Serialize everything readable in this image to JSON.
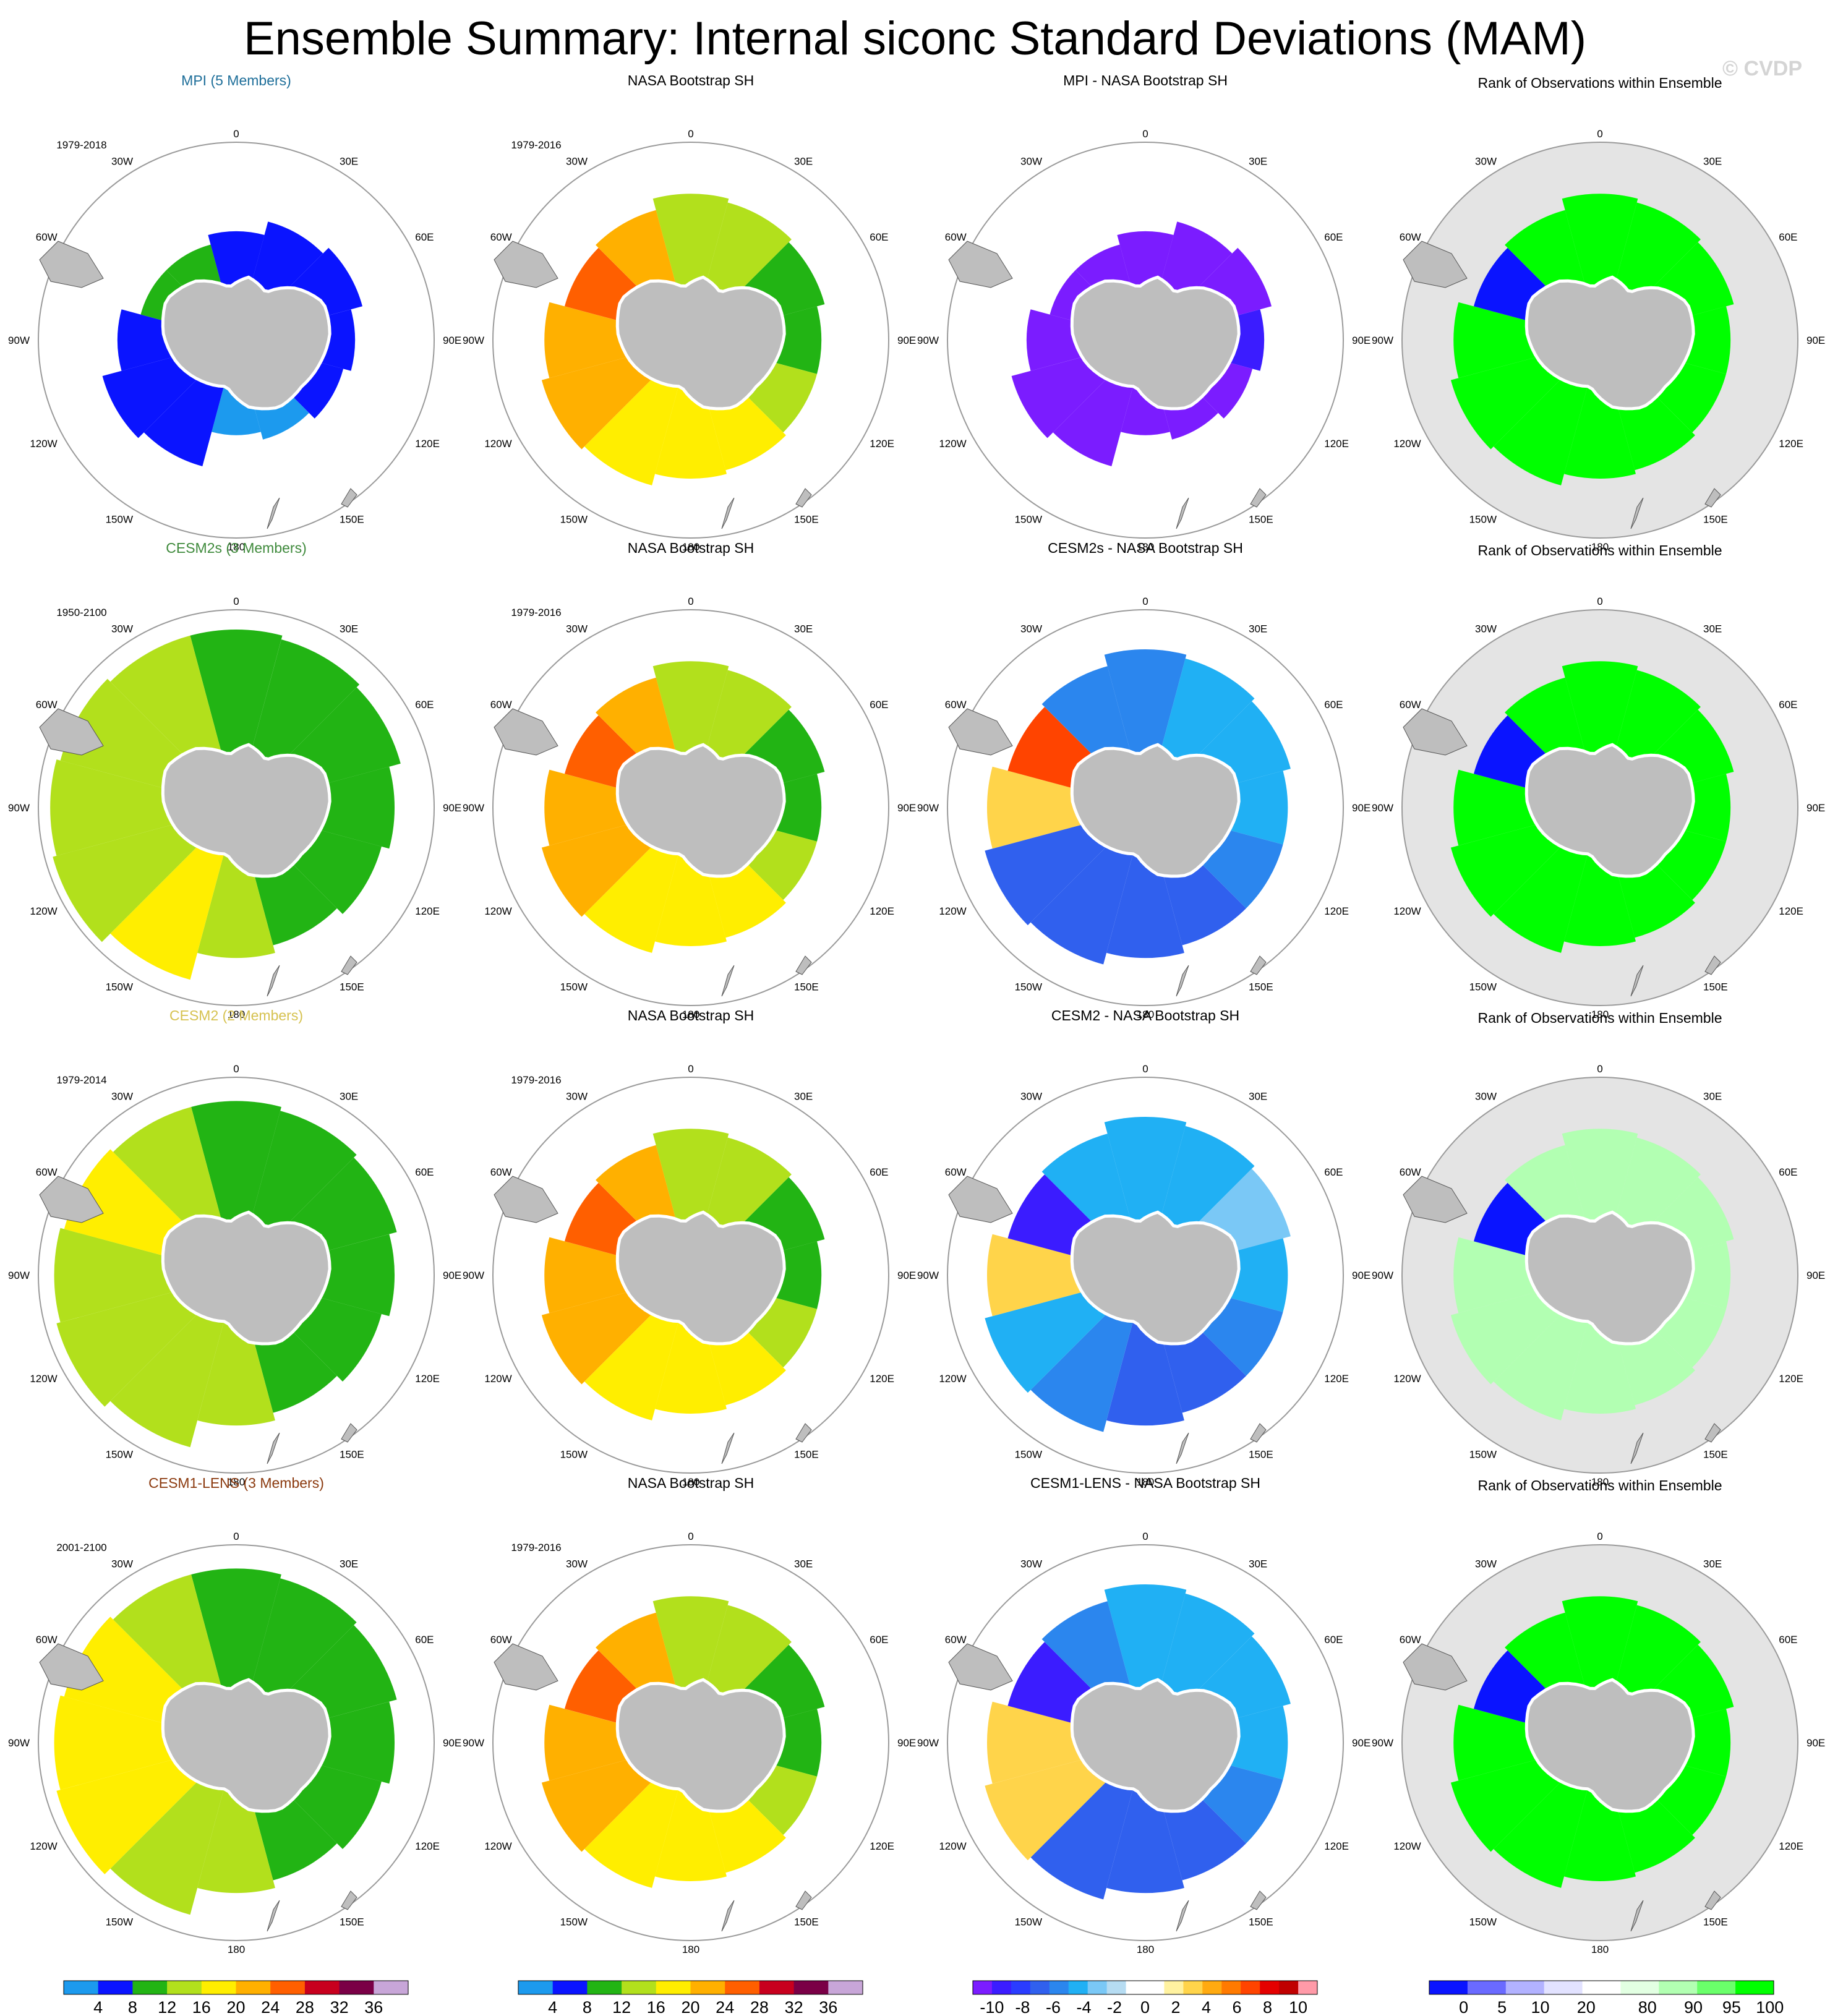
{
  "title": "Ensemble Summary: Internal siconc Standard Deviations (MAM)",
  "watermark": "© CVDP",
  "lon_labels": [
    "0",
    "30E",
    "60E",
    "90E",
    "120E",
    "150E",
    "180",
    "150W",
    "120W",
    "90W",
    "60W",
    "30W"
  ],
  "colors": {
    "land": "#bebebe",
    "rank_background": "#e4e4e4",
    "coast_mask": "#ffffff",
    "map_border": "#9a9a9a"
  },
  "chart_data": {
    "type": "heatmap",
    "projection": "south polar stereographic",
    "rows": [
      {
        "model": "MPI (5 Members)",
        "model_color": "#1f6f9a",
        "model_years": "1979-2018",
        "obs_title": "NASA Bootstrap SH",
        "obs_years": "1979-2016",
        "diff_title": "MPI - NASA Bootstrap SH",
        "rank_title": "Rank of Observations within Ensemble",
        "model_levels": [
          1,
          1,
          1,
          1,
          1,
          0,
          0,
          1,
          1,
          1,
          2,
          2
        ],
        "model_ice_extent": [
          0.55,
          0.62,
          0.66,
          0.6,
          0.56,
          0.52,
          0.48,
          0.66,
          0.7,
          0.6,
          0.5,
          0.5
        ],
        "diff_levels": [
          0,
          0,
          0,
          1,
          0,
          0,
          0,
          0,
          0,
          0,
          0,
          0
        ],
        "rank_levels": [
          11,
          11,
          11,
          11,
          11,
          11,
          11,
          11,
          11,
          11,
          0,
          11
        ]
      },
      {
        "model": "CESM2s (3 Members)",
        "model_color": "#3f8a3c",
        "model_years": "1950-2100",
        "obs_title": "NASA Bootstrap SH",
        "obs_years": "1979-2016",
        "diff_title": "CESM2s - NASA Bootstrap SH",
        "rank_title": "Rank of Observations within Ensemble",
        "model_levels": [
          2,
          2,
          2,
          2,
          2,
          2,
          3,
          4,
          3,
          3,
          3,
          3
        ],
        "model_ice_extent": [
          0.9,
          0.88,
          0.86,
          0.8,
          0.76,
          0.72,
          0.76,
          0.9,
          0.96,
          0.94,
          0.92,
          0.9
        ],
        "diff_levels": [
          4,
          5,
          5,
          5,
          4,
          3,
          3,
          3,
          3,
          11,
          14,
          4
        ],
        "rank_levels": [
          11,
          11,
          11,
          11,
          11,
          11,
          11,
          11,
          11,
          11,
          0,
          11
        ]
      },
      {
        "model": "CESM2 (2 Members)",
        "model_color": "#d6c250",
        "model_years": "1979-2014",
        "obs_title": "NASA Bootstrap SH",
        "obs_years": "1979-2016",
        "diff_title": "CESM2 - NASA Bootstrap SH",
        "rank_title": "Rank of Observations within Ensemble",
        "model_levels": [
          2,
          2,
          2,
          2,
          2,
          2,
          3,
          3,
          3,
          3,
          4,
          3
        ],
        "model_ice_extent": [
          0.88,
          0.86,
          0.84,
          0.8,
          0.76,
          0.72,
          0.76,
          0.9,
          0.94,
          0.92,
          0.9,
          0.88
        ],
        "diff_levels": [
          5,
          5,
          6,
          5,
          4,
          3,
          3,
          4,
          5,
          11,
          1,
          5
        ],
        "rank_levels": [
          6,
          6,
          6,
          6,
          6,
          6,
          6,
          6,
          6,
          6,
          0,
          6
        ]
      },
      {
        "model": "CESM1-LENS (3 Members)",
        "model_color": "#8b3a0f",
        "model_years": "2001-2100",
        "obs_title": "NASA Bootstrap SH",
        "obs_years": "1979-2016",
        "diff_title": "CESM1-LENS - NASA Bootstrap SH",
        "rank_title": "Rank of Observations within Ensemble",
        "model_levels": [
          2,
          2,
          2,
          2,
          2,
          2,
          3,
          3,
          4,
          4,
          4,
          3
        ],
        "model_ice_extent": [
          0.88,
          0.86,
          0.84,
          0.8,
          0.76,
          0.72,
          0.76,
          0.9,
          0.94,
          0.92,
          0.9,
          0.88
        ],
        "diff_levels": [
          5,
          5,
          5,
          5,
          4,
          3,
          3,
          3,
          11,
          11,
          1,
          4
        ],
        "rank_levels": [
          11,
          11,
          11,
          11,
          11,
          11,
          11,
          11,
          11,
          11,
          0,
          11
        ]
      }
    ],
    "obs_levels": [
      3,
      3,
      2,
      2,
      3,
      4,
      4,
      4,
      5,
      5,
      6,
      5
    ],
    "obs_ice_extent": [
      0.74,
      0.72,
      0.7,
      0.66,
      0.66,
      0.68,
      0.7,
      0.76,
      0.78,
      0.74,
      0.66,
      0.68
    ],
    "colorbars": [
      {
        "unit": "%",
        "labels": [
          "4",
          "8",
          "12",
          "16",
          "20",
          "24",
          "28",
          "32",
          "36"
        ],
        "colors": [
          "#1c9aee",
          "#0a14ff",
          "#22b414",
          "#b2e01c",
          "#ffee00",
          "#ffb000",
          "#ff5f00",
          "#c8001e",
          "#7a0046",
          "#c8a6d8"
        ]
      },
      {
        "unit": "%",
        "labels": [
          "4",
          "8",
          "12",
          "16",
          "20",
          "24",
          "28",
          "32",
          "36"
        ],
        "colors": [
          "#1c9aee",
          "#0a14ff",
          "#22b414",
          "#b2e01c",
          "#ffee00",
          "#ffb000",
          "#ff5f00",
          "#c8001e",
          "#7a0046",
          "#c8a6d8"
        ]
      },
      {
        "unit": "%",
        "labels": [
          "-10",
          "-8",
          "-6",
          "-4",
          "-2",
          "0",
          "2",
          "4",
          "6",
          "8",
          "10"
        ],
        "colors": [
          "#7b1cff",
          "#3b1cff",
          "#2a3cff",
          "#3060ee",
          "#2b86ee",
          "#20b0f4",
          "#7ac8f6",
          "#b6dcf2",
          "#ffffff",
          "#ffffff",
          "#fff2a0",
          "#ffd44a",
          "#ffaa10",
          "#ff7a00",
          "#ff4400",
          "#e40000",
          "#c00000",
          "#ff9aa8"
        ]
      },
      {
        "unit": "%",
        "labels": [
          "0",
          "5",
          "10",
          "20",
          "80",
          "90",
          "95",
          "100"
        ],
        "colors": [
          "#0a14ff",
          "#6a6aff",
          "#b2b2ff",
          "#e2e2ff",
          "#ffffff",
          "#e2ffe2",
          "#b2ffb2",
          "#6aff6a",
          "#00ff00"
        ]
      }
    ]
  }
}
